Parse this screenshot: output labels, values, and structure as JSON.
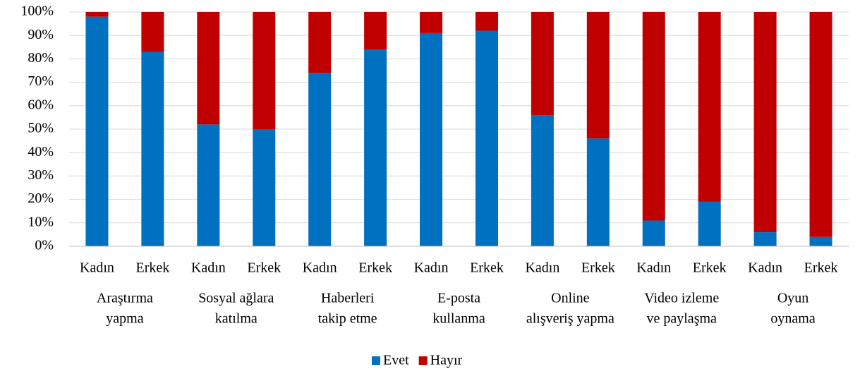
{
  "chart_data": {
    "type": "stacked_bar",
    "categories": [
      "Kadın",
      "Erkek",
      "Kadın",
      "Erkek",
      "Kadın",
      "Erkek",
      "Kadın",
      "Erkek",
      "Kadın",
      "Erkek",
      "Kadın",
      "Erkek",
      "Kadın",
      "Erkek"
    ],
    "groups": [
      [
        "Araştırma",
        "yapma"
      ],
      [
        "Sosyal ağlara",
        "katılma"
      ],
      [
        "Haberleri",
        "takip etme"
      ],
      [
        "E-posta",
        "kullanma"
      ],
      [
        "Online",
        "alışveriş yapma"
      ],
      [
        "Video izleme",
        "ve paylaşma"
      ],
      [
        "Oyun",
        "oynama"
      ]
    ],
    "series": [
      {
        "name": "Evet",
        "color": "#0070c0",
        "values": [
          98,
          83,
          52,
          50,
          74,
          84,
          91,
          92,
          56,
          46,
          11,
          19,
          6,
          4
        ]
      },
      {
        "name": "Hayır",
        "color": "#c00000",
        "values": [
          2,
          17,
          48,
          50,
          26,
          16,
          9,
          8,
          44,
          54,
          89,
          81,
          94,
          96
        ]
      }
    ],
    "ylim": [
      0,
      100
    ],
    "yticks": [
      {
        "value": 0,
        "label": "0%"
      },
      {
        "value": 10,
        "label": "10%"
      },
      {
        "value": 20,
        "label": "20%"
      },
      {
        "value": 30,
        "label": "30%"
      },
      {
        "value": 40,
        "label": "40%"
      },
      {
        "value": 50,
        "label": "50%"
      },
      {
        "value": 60,
        "label": "60%"
      },
      {
        "value": 70,
        "label": "70%"
      },
      {
        "value": 80,
        "label": "80%"
      },
      {
        "value": 90,
        "label": "90%"
      },
      {
        "value": 100,
        "label": "100%"
      }
    ],
    "grid": true,
    "legend": "bottom"
  }
}
